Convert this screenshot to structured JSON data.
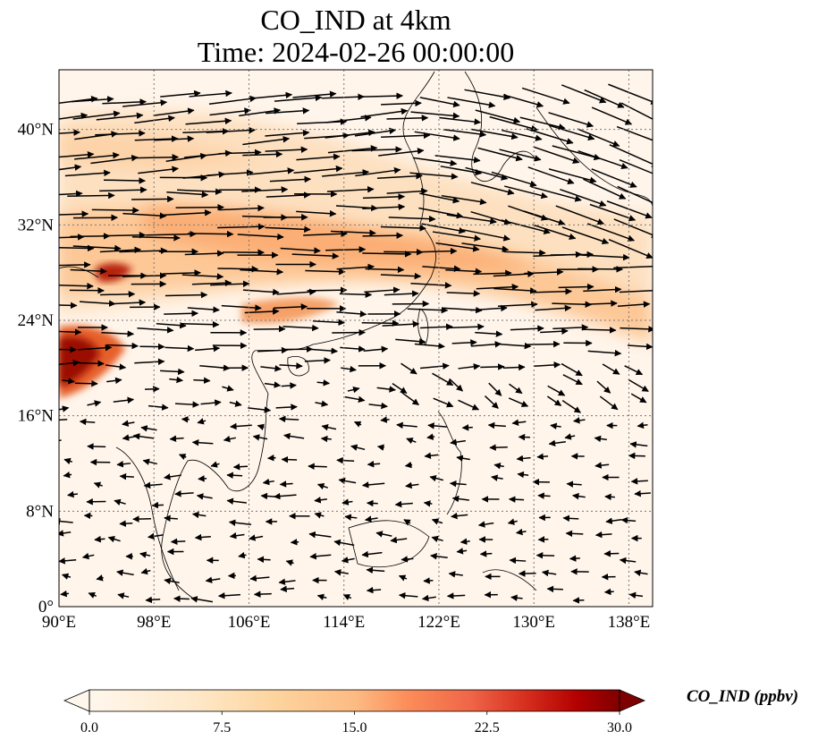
{
  "title": {
    "line1": "CO_IND at 4km",
    "line2": "Time: 2024-02-26 00:00:00"
  },
  "map": {
    "extent": {
      "lon": [
        90,
        140
      ],
      "lat": [
        0,
        45
      ]
    },
    "lon_ticks": [
      {
        "value": 90,
        "label": "90°E"
      },
      {
        "value": 98,
        "label": "98°E"
      },
      {
        "value": 106,
        "label": "106°E"
      },
      {
        "value": 114,
        "label": "114°E"
      },
      {
        "value": 122,
        "label": "122°E"
      },
      {
        "value": 130,
        "label": "130°E"
      },
      {
        "value": 138,
        "label": "138°E"
      }
    ],
    "lat_ticks": [
      {
        "value": 0,
        "label": "0°"
      },
      {
        "value": 8,
        "label": "8°N"
      },
      {
        "value": 16,
        "label": "16°N"
      },
      {
        "value": 24,
        "label": "24°N"
      },
      {
        "value": 32,
        "label": "32°N"
      },
      {
        "value": 40,
        "label": "40°N"
      }
    ],
    "gridlines": true,
    "field": "CO_IND",
    "plume_colors": {
      "low": "#fff5eb",
      "mid": "#fdbe85",
      "high": "#d94801",
      "max": "#7f0000"
    }
  },
  "colorbar": {
    "label": "CO_IND (ppbv)",
    "min": 0.0,
    "max": 30.0,
    "extend": "both",
    "ticks": [
      {
        "value": 0,
        "label": "0.0"
      },
      {
        "value": 7.5,
        "label": "7.5"
      },
      {
        "value": 15,
        "label": "15.0"
      },
      {
        "value": 22.5,
        "label": "22.5"
      },
      {
        "value": 30,
        "label": "30.0"
      }
    ],
    "colormap": "OrRd"
  }
}
